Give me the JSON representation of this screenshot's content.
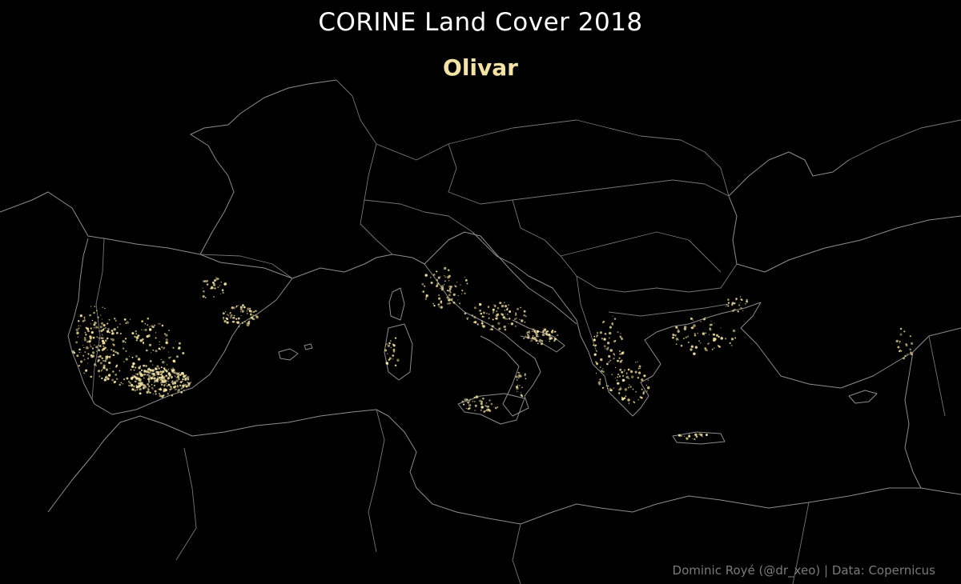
{
  "title": "CORINE Land Cover 2018",
  "subtitle": "Olivar",
  "credit": "Dominic Royé (@dr_xeo) | Data: Copernicus",
  "colors": {
    "background": "#000000",
    "outline": "#8d8d8d",
    "olive": "#f4e3a6",
    "title": "#ffffff",
    "credit": "#7a7a7a"
  }
}
